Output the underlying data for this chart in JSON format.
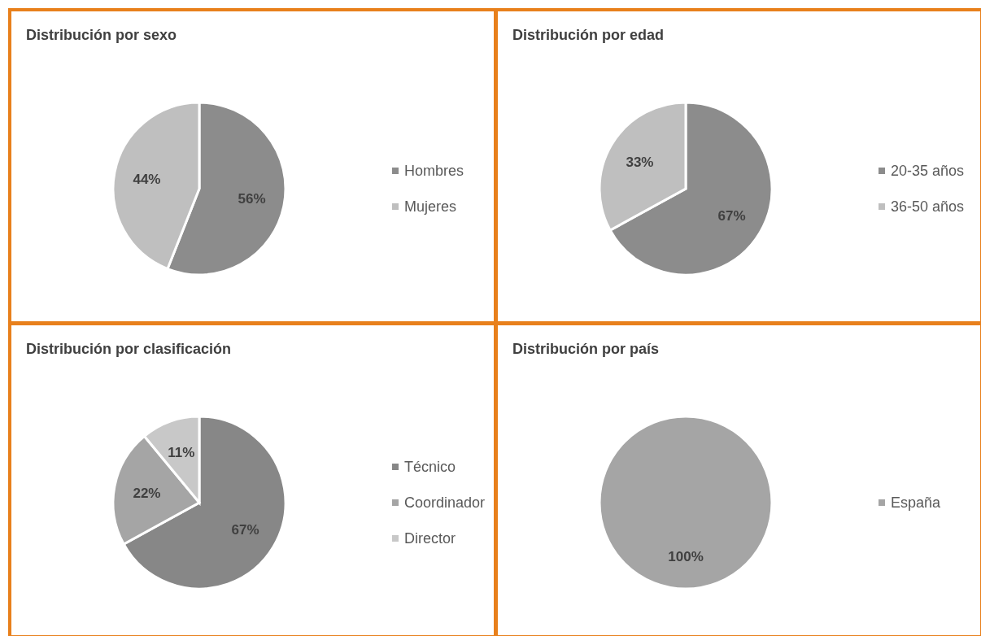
{
  "chart_data": [
    {
      "type": "pie",
      "title": "Distribución por sexo",
      "categories": [
        "Hombres",
        "Mujeres"
      ],
      "values": [
        56,
        44
      ],
      "value_labels": [
        "56%",
        "44%"
      ],
      "colors": [
        "#8c8c8c",
        "#bfbfbf"
      ],
      "legend": "right"
    },
    {
      "type": "pie",
      "title": "Distribución por edad",
      "categories": [
        "20-35 años",
        "36-50 años"
      ],
      "values": [
        67,
        33
      ],
      "value_labels": [
        "67%",
        "33%"
      ],
      "colors": [
        "#8c8c8c",
        "#bfbfbf"
      ],
      "legend": "right"
    },
    {
      "type": "pie",
      "title": "Distribución por clasificación",
      "categories": [
        "Técnico",
        "Coordinador",
        "Director"
      ],
      "values": [
        67,
        22,
        11
      ],
      "value_labels": [
        "67%",
        "22%",
        "11%"
      ],
      "colors": [
        "#878787",
        "#a5a5a5",
        "#c8c8c8"
      ],
      "legend": "right"
    },
    {
      "type": "pie",
      "title": "Distribución por país",
      "categories": [
        "España"
      ],
      "values": [
        100
      ],
      "value_labels": [
        "100%"
      ],
      "colors": [
        "#a5a5a5"
      ],
      "legend": "right"
    }
  ]
}
